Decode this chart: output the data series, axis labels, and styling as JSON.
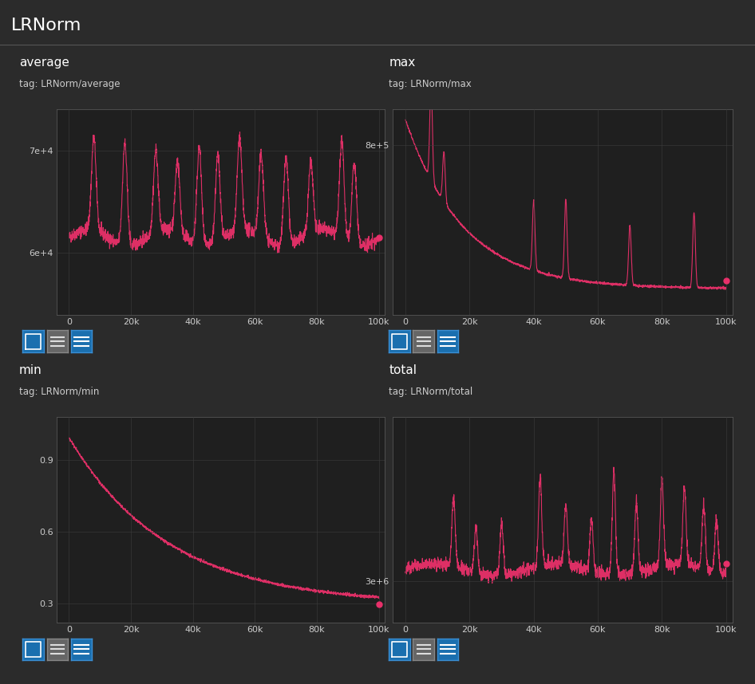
{
  "title": "LRNorm",
  "bg_color": "#2b2b2b",
  "panel_bg_color": "#1f1f1f",
  "text_color": "#cccccc",
  "white_color": "#ffffff",
  "line_color": "#e8306a",
  "grid_color": "#3d3d3d",
  "spine_color": "#555555",
  "header_line_color": "#555555",
  "btn_blue_color": "#1a6faf",
  "btn_gray_color": "#666666",
  "subplots": [
    {
      "title": "average",
      "tag": "tag: LRNorm/average",
      "yticks": [
        60000,
        70000
      ],
      "ytick_labels": [
        "6e+4",
        "7e+4"
      ],
      "ylim": [
        54000,
        74000
      ],
      "xticks": [
        0,
        20000,
        40000,
        60000,
        80000,
        100000
      ],
      "xtick_labels": [
        "0",
        "20k",
        "40k",
        "60k",
        "80k",
        "100k"
      ],
      "xlim": [
        -4000,
        102000
      ],
      "last_val_y": 61500,
      "last_val_x": 100000,
      "curve_type": "average"
    },
    {
      "title": "max",
      "tag": "tag: LRNorm/max",
      "yticks": [
        800000
      ],
      "ytick_labels": [
        "8e+5"
      ],
      "ylim": [
        -50000,
        980000
      ],
      "xticks": [
        0,
        20000,
        40000,
        60000,
        80000,
        100000
      ],
      "xtick_labels": [
        "0",
        "20k",
        "40k",
        "60k",
        "80k",
        "100k"
      ],
      "xlim": [
        -4000,
        102000
      ],
      "last_val_y": 120000,
      "last_val_x": 100000,
      "curve_type": "max"
    },
    {
      "title": "min",
      "tag": "tag: LRNorm/min",
      "yticks": [
        0.3,
        0.6,
        0.9
      ],
      "ytick_labels": [
        "0.3",
        "0.6",
        "0.9"
      ],
      "ylim": [
        0.22,
        1.08
      ],
      "xticks": [
        0,
        20000,
        40000,
        60000,
        80000,
        100000
      ],
      "xtick_labels": [
        "0",
        "20k",
        "40k",
        "60k",
        "80k",
        "100k"
      ],
      "xlim": [
        -4000,
        102000
      ],
      "last_val_y": 0.295,
      "last_val_x": 100000,
      "curve_type": "min"
    },
    {
      "title": "total",
      "tag": "tag: LRNorm/total",
      "yticks": [
        3000000
      ],
      "ytick_labels": [
        "3e+6"
      ],
      "ylim": [
        2300000,
        5800000
      ],
      "xticks": [
        0,
        20000,
        40000,
        60000,
        80000,
        100000
      ],
      "xtick_labels": [
        "0",
        "20k",
        "40k",
        "60k",
        "80k",
        "100k"
      ],
      "xlim": [
        -4000,
        102000
      ],
      "last_val_y": 3300000,
      "last_val_x": 100000,
      "curve_type": "total"
    }
  ]
}
